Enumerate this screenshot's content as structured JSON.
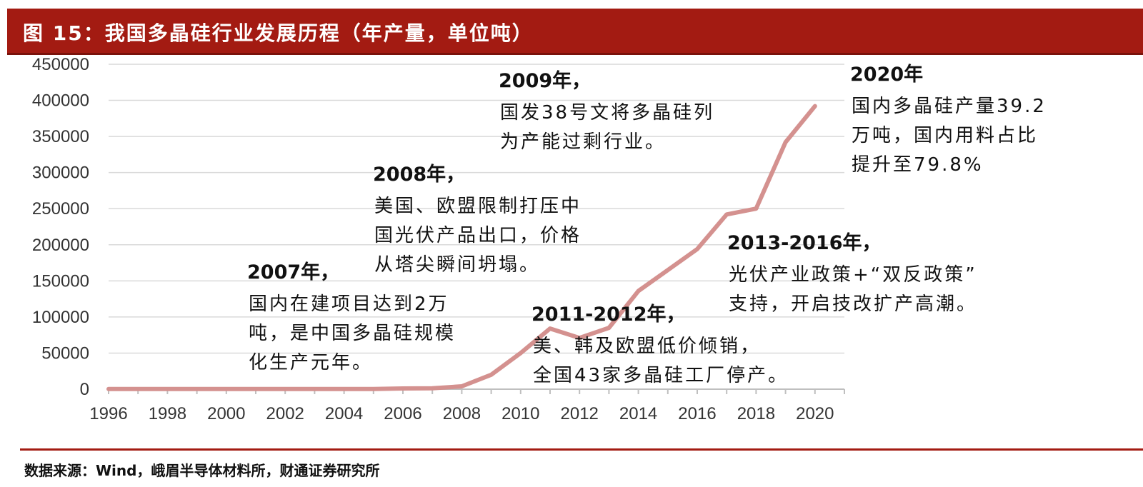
{
  "figure": {
    "title": "图 15：我国多晶硅行业发展历程（年产量，单位吨）",
    "source": "数据来源：Wind，峨眉半导体材料所，财通证券研究所",
    "line_color": "#d4918f",
    "title_bg": "#a31b12"
  },
  "chart_data": {
    "type": "line",
    "title": "我国多晶硅行业发展历程（年产量，单位吨）",
    "xlabel": "",
    "ylabel": "",
    "ylim": [
      0,
      450000
    ],
    "yticks": [
      "0",
      "50000",
      "100000",
      "150000",
      "200000",
      "250000",
      "300000",
      "350000",
      "400000",
      "450000"
    ],
    "xticks": [
      "1996",
      "1998",
      "2000",
      "2002",
      "2004",
      "2006",
      "2008",
      "2010",
      "2012",
      "2014",
      "2016",
      "2018",
      "2020"
    ],
    "grid": true,
    "legend": "none",
    "x": [
      1996,
      1997,
      1998,
      1999,
      2000,
      2001,
      2002,
      2003,
      2004,
      2005,
      2006,
      2007,
      2008,
      2009,
      2010,
      2011,
      2012,
      2013,
      2014,
      2015,
      2016,
      2017,
      2018,
      2019,
      2020
    ],
    "series": [
      {
        "values": [
          200,
          300,
          300,
          300,
          300,
          300,
          300,
          300,
          300,
          300,
          1000,
          1200,
          4000,
          20000,
          50000,
          84000,
          71000,
          85000,
          136000,
          165000,
          194000,
          242000,
          250000,
          342000,
          392000
        ]
      }
    ],
    "annotations": [
      {
        "title": "2007年，",
        "lines": [
          "国内在建项目达到2万",
          "吨，是中国多晶硅规模",
          "化生产元年。"
        ]
      },
      {
        "title": "2008年，",
        "lines": [
          "美国、欧盟限制打压中",
          "国光伏产品出口，价格",
          "从塔尖瞬间坍塌。"
        ]
      },
      {
        "title": "2009年，",
        "lines": [
          "国发38号文将多晶硅列",
          "为产能过剩行业。"
        ]
      },
      {
        "title": "2011-2012年，",
        "lines": [
          "美、韩及欧盟低价倾销，",
          "全国43家多晶硅工厂停产。"
        ]
      },
      {
        "title": "2013-2016年，",
        "lines": [
          "光伏产业政策+“双反政策”",
          "支持，开启技改扩产高潮。"
        ]
      },
      {
        "title": "2020年",
        "lines": [
          "国内多晶硅产量39.2",
          "万吨，国内用料占比",
          "提升至79.8%"
        ]
      }
    ]
  }
}
